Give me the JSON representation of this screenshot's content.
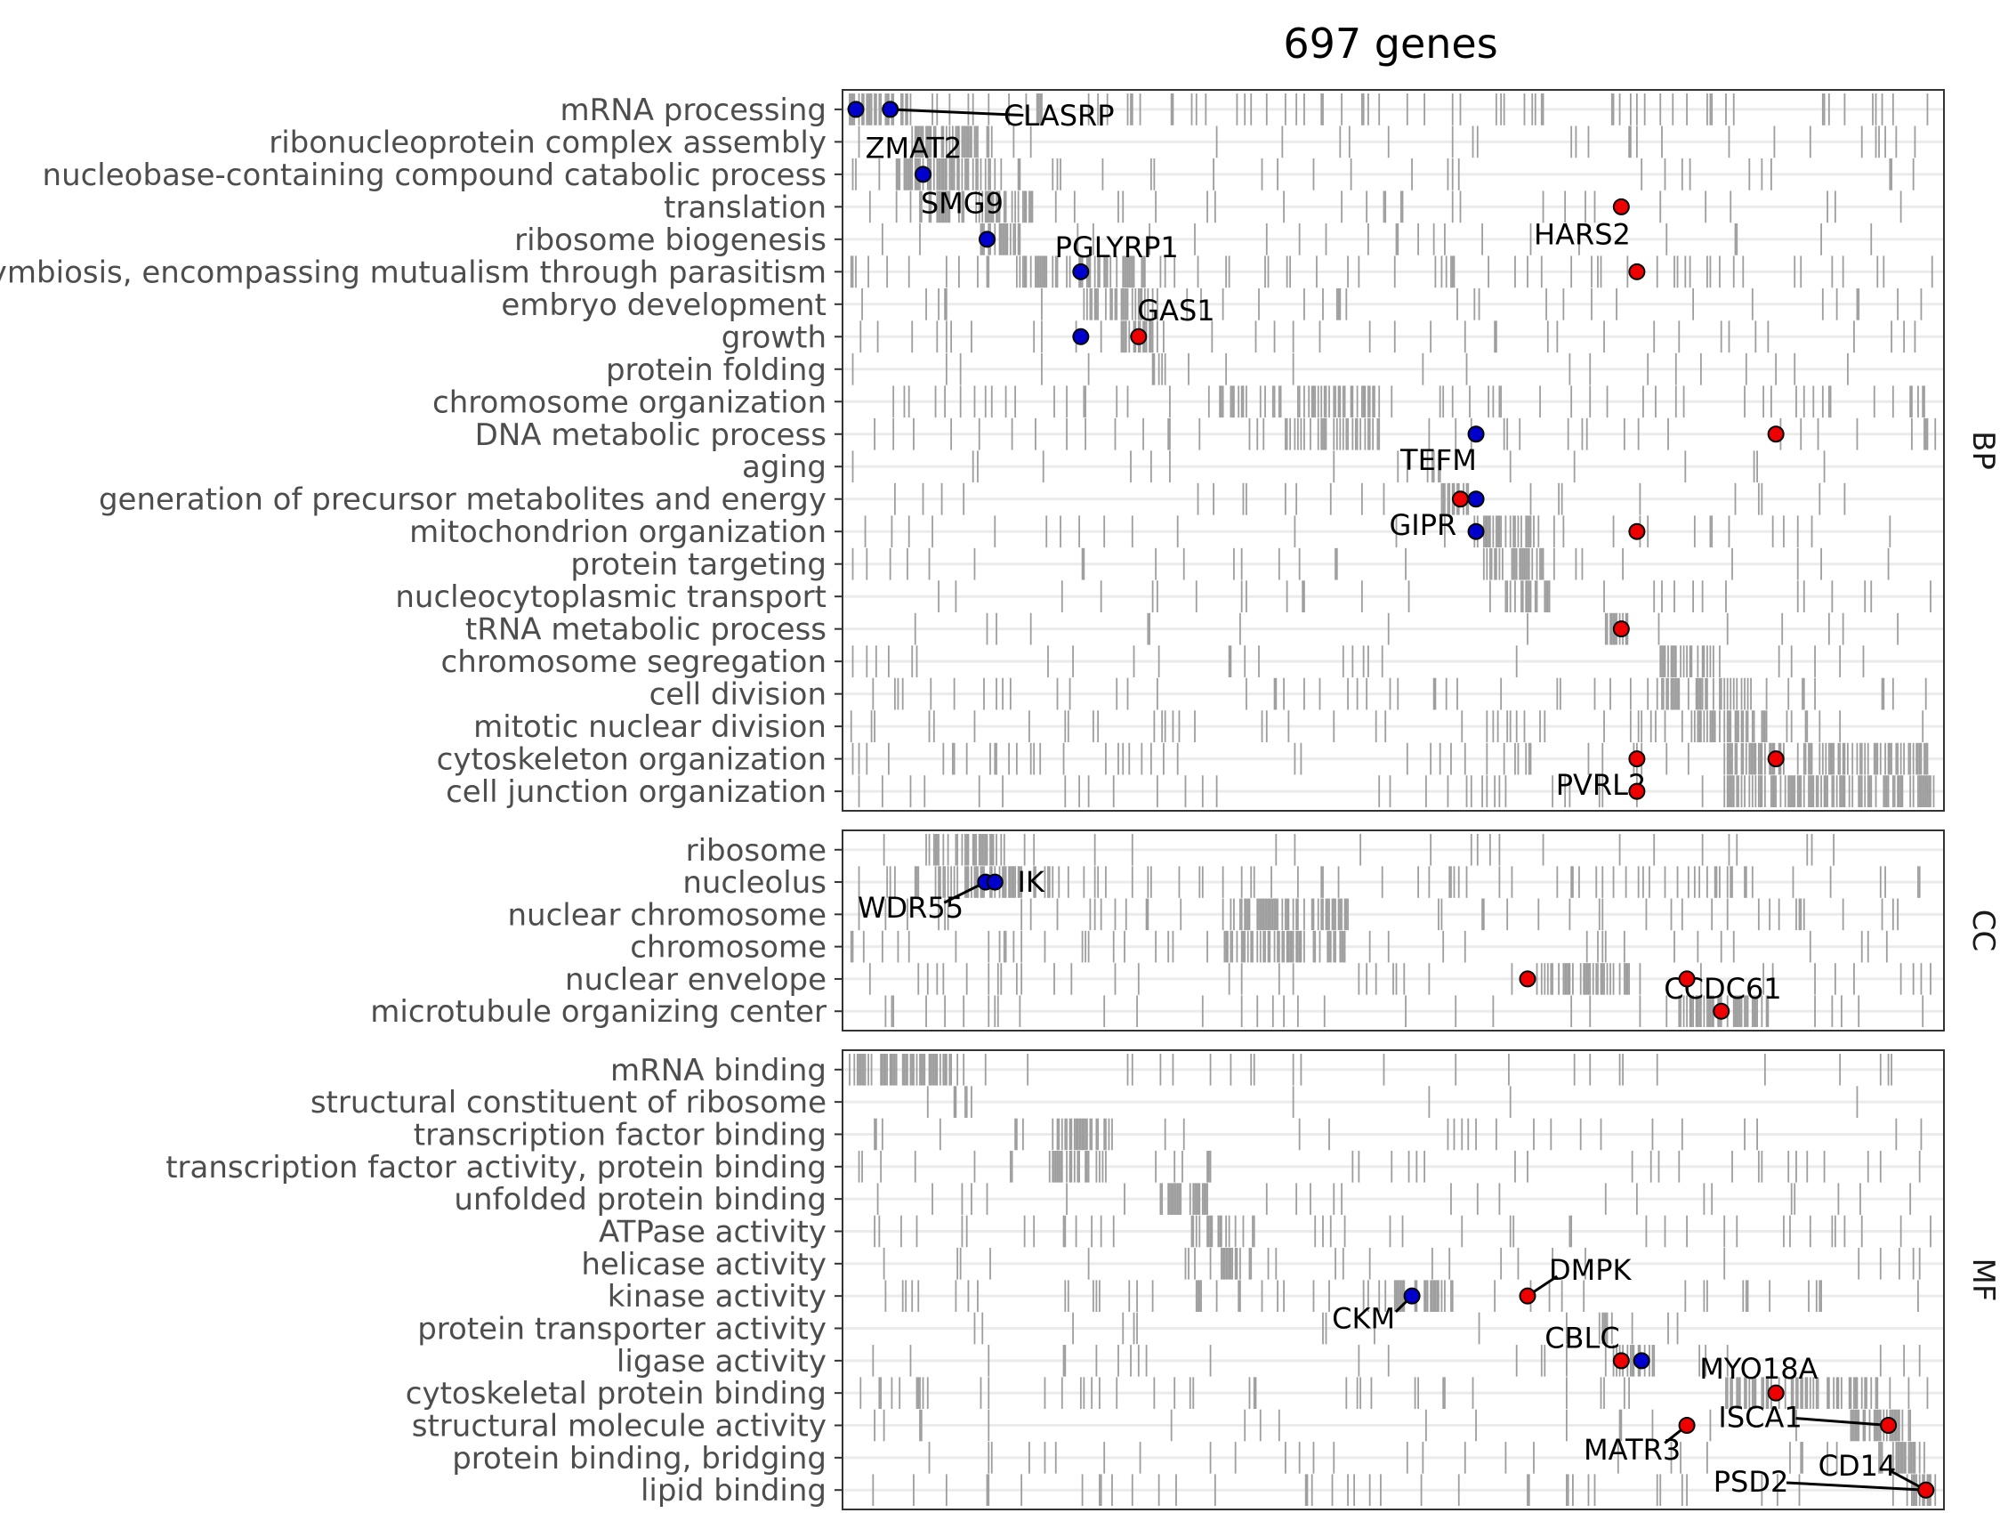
{
  "chart_data": {
    "type": "heatmap",
    "title": "697 genes",
    "x_range": [
      1,
      697
    ],
    "grid": true,
    "colors": {
      "tick": "#9e9e9e",
      "grid": "#ebebeb",
      "panel_border": "#333333",
      "up_point": "#ee0000",
      "down_point": "#0000cc"
    },
    "panels": [
      {
        "name": "BP",
        "terms": [
          "mRNA processing",
          "ribonucleoprotein complex assembly",
          "nucleobase-containing compound catabolic process",
          "translation",
          "ribosome biogenesis",
          "symbiosis, encompassing mutualism through parasitism",
          "embryo development",
          "growth",
          "protein folding",
          "chromosome organization",
          "DNA metabolic process",
          "aging",
          "generation of precursor metabolites and energy",
          "mitochondrion organization",
          "protein targeting",
          "nucleocytoplasmic transport",
          "tRNA metabolic process",
          "chromosome segregation",
          "cell division",
          "mitotic nuclear division",
          "cytoskeleton organization",
          "cell junction organization"
        ],
        "blocks": [
          [
            1,
            40
          ],
          [
            40,
            90
          ],
          [
            30,
            95
          ],
          [
            40,
            120
          ],
          [
            85,
            110
          ],
          [
            110,
            190
          ],
          [
            150,
            200
          ],
          [
            175,
            200
          ],
          [
            195,
            205
          ],
          [
            235,
            340
          ],
          [
            280,
            340
          ],
          [
            370,
            380
          ],
          [
            380,
            400
          ],
          [
            400,
            440
          ],
          [
            405,
            445
          ],
          [
            420,
            450
          ],
          [
            485,
            500
          ],
          [
            520,
            560
          ],
          [
            520,
            580
          ],
          [
            540,
            590
          ],
          [
            560,
            690
          ],
          [
            560,
            697
          ]
        ],
        "density": [
          0.35,
          0.1,
          0.12,
          0.12,
          0.1,
          0.25,
          0.15,
          0.15,
          0.08,
          0.25,
          0.2,
          0.08,
          0.1,
          0.1,
          0.1,
          0.15,
          0.08,
          0.12,
          0.2,
          0.22,
          0.22,
          0.15
        ]
      },
      {
        "name": "CC",
        "terms": [
          "ribosome",
          "nucleolus",
          "nuclear chromosome",
          "chromosome",
          "nuclear envelope",
          "microtubule organizing center"
        ],
        "blocks": [
          [
            50,
            100
          ],
          [
            55,
            120
          ],
          [
            240,
            320
          ],
          [
            240,
            320
          ],
          [
            440,
            500
          ],
          [
            530,
            590
          ]
        ],
        "density": [
          0.12,
          0.3,
          0.2,
          0.2,
          0.15,
          0.15
        ]
      },
      {
        "name": "MF",
        "terms": [
          "mRNA binding",
          "structural constituent of ribosome",
          "transcription factor binding",
          "transcription factor activity, protein binding",
          "unfolded protein binding",
          "ATPase activity",
          "helicase activity",
          "kinase activity",
          "protein transporter activity",
          "ligase activity",
          "cytoskeletal protein binding",
          "structural molecule activity",
          "protein binding, bridging",
          "lipid binding"
        ],
        "blocks": [
          [
            1,
            75
          ],
          [
            68,
            80
          ],
          [
            130,
            170
          ],
          [
            130,
            165
          ],
          [
            200,
            230
          ],
          [
            220,
            260
          ],
          [
            240,
            260
          ],
          [
            350,
            390
          ],
          [
            480,
            490
          ],
          [
            490,
            520
          ],
          [
            560,
            660
          ],
          [
            640,
            680
          ],
          [
            660,
            690
          ],
          [
            680,
            697
          ]
        ],
        "density": [
          0.12,
          0.03,
          0.12,
          0.12,
          0.08,
          0.15,
          0.12,
          0.18,
          0.05,
          0.12,
          0.2,
          0.1,
          0.1,
          0.2
        ]
      }
    ],
    "genes": [
      {
        "panel": 0,
        "term": "mRNA processing",
        "x": 5,
        "direction": "down",
        "label": ""
      },
      {
        "panel": 0,
        "term": "mRNA processing",
        "x": 27,
        "direction": "down",
        "label": "CLASRP",
        "label_x": 135,
        "label_row": 0.2
      },
      {
        "panel": 0,
        "term": "nucleobase-containing compound catabolic process",
        "x": 48,
        "direction": "down",
        "label": "ZMAT2",
        "label_x": 42,
        "label_row": -0.8
      },
      {
        "panel": 0,
        "term": "ribosome biogenesis",
        "x": 89,
        "direction": "down",
        "label": "SMG9",
        "label_x": 73,
        "label_row": -1.1
      },
      {
        "panel": 0,
        "term": "symbiosis, encompassing mutualism through parasitism",
        "x": 149,
        "direction": "down",
        "label": "PGLYRP1",
        "label_x": 172,
        "label_row": -0.75
      },
      {
        "panel": 0,
        "term": "growth",
        "x": 149,
        "direction": "down",
        "label": ""
      },
      {
        "panel": 0,
        "term": "growth",
        "x": 186,
        "direction": "up",
        "label": "GAS1",
        "label_x": 210,
        "label_row": -0.8
      },
      {
        "panel": 0,
        "term": "translation",
        "x": 495,
        "direction": "up",
        "label": "HARS2",
        "label_x": 470,
        "label_row": 0.85
      },
      {
        "panel": 0,
        "term": "symbiosis, encompassing mutualism through parasitism",
        "x": 505,
        "direction": "up",
        "label": ""
      },
      {
        "panel": 0,
        "term": "DNA metabolic process",
        "x": 402,
        "direction": "down",
        "label": "TEFM",
        "label_x": 378,
        "label_row": 0.8
      },
      {
        "panel": 0,
        "term": "DNA metabolic process",
        "x": 594,
        "direction": "up",
        "label": ""
      },
      {
        "panel": 0,
        "term": "generation of precursor metabolites and energy",
        "x": 392,
        "direction": "up",
        "label": "GIPR",
        "label_x": 368,
        "label_row": 0.8
      },
      {
        "panel": 0,
        "term": "generation of precursor metabolites and energy",
        "x": 402,
        "direction": "down",
        "label": ""
      },
      {
        "panel": 0,
        "term": "mitochondrion organization",
        "x": 402,
        "direction": "down",
        "label": ""
      },
      {
        "panel": 0,
        "term": "mitochondrion organization",
        "x": 505,
        "direction": "up",
        "label": ""
      },
      {
        "panel": 0,
        "term": "tRNA metabolic process",
        "x": 495,
        "direction": "up",
        "label": ""
      },
      {
        "panel": 0,
        "term": "cytoskeleton organization",
        "x": 505,
        "direction": "up",
        "label": "PVRL2",
        "label_x": 482,
        "label_row": 0.8
      },
      {
        "panel": 0,
        "term": "cytoskeleton organization",
        "x": 594,
        "direction": "up",
        "label": ""
      },
      {
        "panel": 0,
        "term": "cell junction organization",
        "x": 505,
        "direction": "up",
        "label": ""
      },
      {
        "panel": 1,
        "term": "nucleolus",
        "x": 88,
        "direction": "down",
        "label": "WDR55",
        "label_x": 40,
        "label_row": 0.8
      },
      {
        "panel": 1,
        "term": "nucleolus",
        "x": 94,
        "direction": "down",
        "label": "IK",
        "label_x": 117,
        "label_row": 0.0
      },
      {
        "panel": 1,
        "term": "nuclear envelope",
        "x": 435,
        "direction": "up",
        "label": ""
      },
      {
        "panel": 1,
        "term": "nuclear envelope",
        "x": 537,
        "direction": "up",
        "label": "CCDC61",
        "label_x": 560,
        "label_row": 0.3
      },
      {
        "panel": 1,
        "term": "microtubule organizing center",
        "x": 559,
        "direction": "up",
        "label": ""
      },
      {
        "panel": 2,
        "term": "kinase activity",
        "x": 361,
        "direction": "down",
        "label": "CKM",
        "label_x": 330,
        "label_row": 0.7
      },
      {
        "panel": 2,
        "term": "kinase activity",
        "x": 435,
        "direction": "up",
        "label": "DMPK",
        "label_x": 475,
        "label_row": -0.8
      },
      {
        "panel": 2,
        "term": "ligase activity",
        "x": 495,
        "direction": "up",
        "label": "CBLC",
        "label_x": 470,
        "label_row": -0.7
      },
      {
        "panel": 2,
        "term": "ligase activity",
        "x": 508,
        "direction": "down",
        "label": ""
      },
      {
        "panel": 2,
        "term": "cytoskeletal protein binding",
        "x": 594,
        "direction": "up",
        "label": "MYO18A",
        "label_x": 583,
        "label_row": -0.75
      },
      {
        "panel": 2,
        "term": "structural molecule activity",
        "x": 537,
        "direction": "up",
        "label": "MATR3",
        "label_x": 502,
        "label_row": 0.75
      },
      {
        "panel": 2,
        "term": "structural molecule activity",
        "x": 666,
        "direction": "up",
        "label": "ISCA1",
        "label_x": 584,
        "label_row": -0.25
      },
      {
        "panel": 2,
        "term": "lipid binding",
        "x": 690,
        "direction": "up",
        "label": "CD14",
        "label_x": 646,
        "label_row": -0.75
      },
      {
        "panel": 2,
        "term": "lipid binding",
        "x": 690,
        "direction": "up",
        "label": "PSD2",
        "label_x": 578,
        "label_row": -0.25
      }
    ]
  }
}
